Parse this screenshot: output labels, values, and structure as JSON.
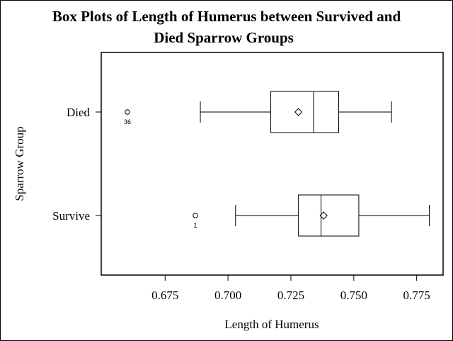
{
  "chart_data": {
    "type": "boxplot",
    "orientation": "horizontal",
    "title_line1": "Box Plots of Length of Humerus between Survived and",
    "title_line2": "Died Sparrow Groups",
    "xlabel": "Length of Humerus",
    "ylabel": "Sparrow Group",
    "xlim": [
      0.6496,
      0.7855
    ],
    "xticks": [
      "0.675",
      "0.700",
      "0.725",
      "0.750",
      "0.775"
    ],
    "grid": false,
    "groups": [
      {
        "label": "Died",
        "whisker_low": 0.689,
        "q1": 0.717,
        "median": 0.734,
        "q3": 0.744,
        "whisker_high": 0.765,
        "mean": 0.728,
        "outliers": [
          {
            "value": 0.66,
            "label": "36"
          }
        ]
      },
      {
        "label": "Survive",
        "whisker_low": 0.703,
        "q1": 0.728,
        "median": 0.737,
        "q3": 0.752,
        "whisker_high": 0.78,
        "mean": 0.738,
        "outliers": [
          {
            "value": 0.687,
            "label": "1"
          }
        ]
      }
    ]
  }
}
